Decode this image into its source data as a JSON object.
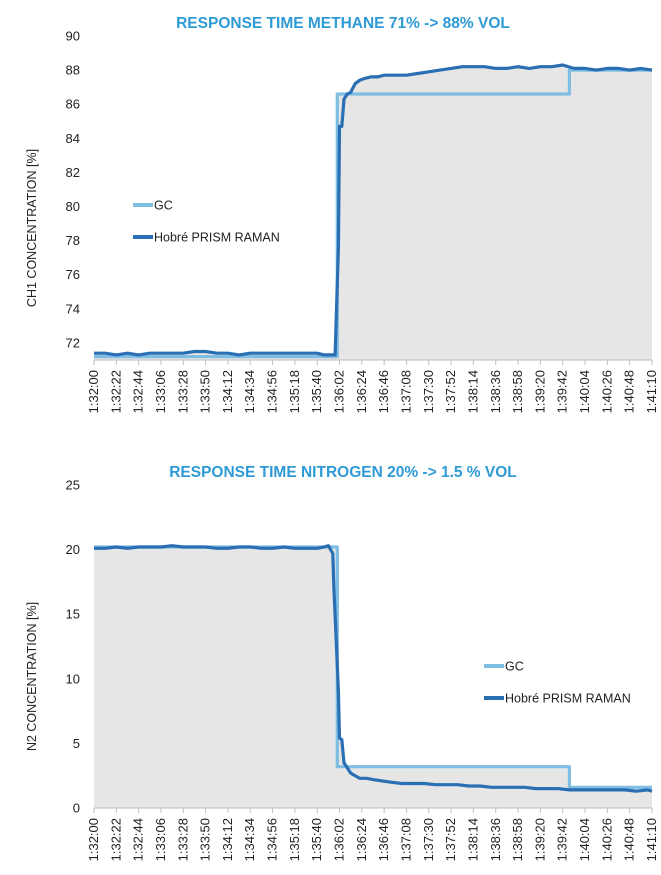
{
  "colors": {
    "title": "#2e9ad6",
    "gc": "#7fbde3",
    "raman": "#2a6fb3",
    "plot_bg": "#e6e6e6",
    "axis": "#bdbdbd"
  },
  "chart_data": [
    {
      "type": "line",
      "title": "RESPONSE TIME METHANE 71% -> 88% VOL",
      "ylabel": "CH1 CONCENTRATION [%]",
      "xlabel": "",
      "ylim": [
        71,
        90
      ],
      "yticks": [
        72,
        74,
        76,
        78,
        80,
        82,
        84,
        86,
        88,
        90
      ],
      "area_fill": true,
      "legend_position": "middle-left",
      "categories": [
        "1:32:00",
        "1:32:22",
        "1:32:44",
        "1:33:06",
        "1:33:28",
        "1:33:50",
        "1:34:12",
        "1:34:34",
        "1:34:56",
        "1:35:18",
        "1:35:40",
        "1:36:02",
        "1:36:24",
        "1:36:46",
        "1:37:08",
        "1:37:30",
        "1:37:52",
        "1:38:14",
        "1:38:36",
        "1:38:58",
        "1:39:20",
        "1:39:42",
        "1:40:04",
        "1:40:26",
        "1:40:48",
        "1:41:10"
      ],
      "series": [
        {
          "name": "GC",
          "x": [
            0,
            10.9,
            10.9,
            21.3,
            21.3,
            25
          ],
          "y": [
            71.2,
            71.2,
            86.6,
            86.6,
            88.0,
            88.0
          ]
        },
        {
          "name": "Hobré PRISM RAMAN",
          "x": [
            0,
            0.5,
            1,
            1.5,
            2,
            2.5,
            3,
            3.5,
            4,
            4.5,
            5,
            5.5,
            6,
            6.5,
            7,
            7.5,
            8,
            8.5,
            9,
            9.5,
            10,
            10.3,
            10.6,
            10.65,
            10.8,
            10.95,
            11.0,
            11.1,
            11.2,
            11.35,
            11.5,
            11.7,
            11.9,
            12.1,
            12.4,
            12.7,
            13,
            13.5,
            14,
            14.5,
            15,
            15.5,
            16,
            16.5,
            17,
            17.5,
            18,
            18.5,
            19,
            19.5,
            20,
            20.5,
            21,
            21.5,
            22,
            22.5,
            23,
            23.5,
            24,
            24.5,
            25
          ],
          "y": [
            71.4,
            71.4,
            71.3,
            71.4,
            71.3,
            71.4,
            71.4,
            71.4,
            71.4,
            71.5,
            71.5,
            71.4,
            71.4,
            71.3,
            71.4,
            71.4,
            71.4,
            71.4,
            71.4,
            71.4,
            71.4,
            71.3,
            71.3,
            71.3,
            71.3,
            77.6,
            84.7,
            84.7,
            86.3,
            86.6,
            86.7,
            87.2,
            87.4,
            87.5,
            87.6,
            87.6,
            87.7,
            87.7,
            87.7,
            87.8,
            87.9,
            88.0,
            88.1,
            88.2,
            88.2,
            88.2,
            88.1,
            88.1,
            88.2,
            88.1,
            88.2,
            88.2,
            88.3,
            88.1,
            88.1,
            88.0,
            88.1,
            88.1,
            88.0,
            88.1,
            88.0
          ]
        }
      ]
    },
    {
      "type": "line",
      "title": "RESPONSE TIME NITROGEN 20% -> 1.5 % VOL",
      "ylabel": "N2 CONCENTRATION [%]",
      "xlabel": "",
      "ylim": [
        0,
        25
      ],
      "yticks": [
        0,
        5,
        10,
        15,
        20,
        25
      ],
      "area_fill": true,
      "legend_position": "middle-right",
      "categories": [
        "1:32:00",
        "1:32:22",
        "1:32:44",
        "1:33:06",
        "1:33:28",
        "1:33:50",
        "1:34:12",
        "1:34:34",
        "1:34:56",
        "1:35:18",
        "1:35:40",
        "1:36:02",
        "1:36:24",
        "1:36:46",
        "1:37:08",
        "1:37:30",
        "1:37:52",
        "1:38:14",
        "1:38:36",
        "1:38:58",
        "1:39:20",
        "1:39:42",
        "1:40:04",
        "1:40:26",
        "1:40:48",
        "1:41:10"
      ],
      "series": [
        {
          "name": "GC",
          "x": [
            0,
            10.9,
            10.9,
            21.3,
            21.3,
            25
          ],
          "y": [
            20.2,
            20.2,
            3.2,
            3.2,
            1.6,
            1.6
          ]
        },
        {
          "name": "Hobré PRISM RAMAN",
          "x": [
            0,
            0.5,
            1,
            1.5,
            2,
            2.5,
            3,
            3.5,
            4,
            4.5,
            5,
            5.5,
            6,
            6.5,
            7,
            7.5,
            8,
            8.5,
            9,
            9.5,
            10,
            10.3,
            10.5,
            10.6,
            10.7,
            10.75,
            10.85,
            10.95,
            11.0,
            11.1,
            11.2,
            11.35,
            11.5,
            11.7,
            11.9,
            12.2,
            12.5,
            12.9,
            13.3,
            13.8,
            14.3,
            14.8,
            15.3,
            15.8,
            16.3,
            16.8,
            17.3,
            17.8,
            18.3,
            18.8,
            19.3,
            19.8,
            20.3,
            20.8,
            21.3,
            21.8,
            22.3,
            22.8,
            23.3,
            23.8,
            24.3,
            24.8,
            25
          ],
          "y": [
            20.1,
            20.1,
            20.2,
            20.1,
            20.2,
            20.2,
            20.2,
            20.3,
            20.2,
            20.2,
            20.2,
            20.1,
            20.1,
            20.2,
            20.2,
            20.1,
            20.1,
            20.2,
            20.1,
            20.1,
            20.1,
            20.2,
            20.3,
            20.0,
            19.7,
            17.0,
            13.0,
            9.0,
            5.4,
            5.3,
            3.5,
            3.1,
            2.7,
            2.5,
            2.3,
            2.3,
            2.2,
            2.1,
            2.0,
            1.9,
            1.9,
            1.9,
            1.8,
            1.8,
            1.8,
            1.7,
            1.7,
            1.6,
            1.6,
            1.6,
            1.6,
            1.5,
            1.5,
            1.5,
            1.4,
            1.4,
            1.4,
            1.4,
            1.4,
            1.4,
            1.3,
            1.4,
            1.3
          ]
        }
      ]
    }
  ]
}
